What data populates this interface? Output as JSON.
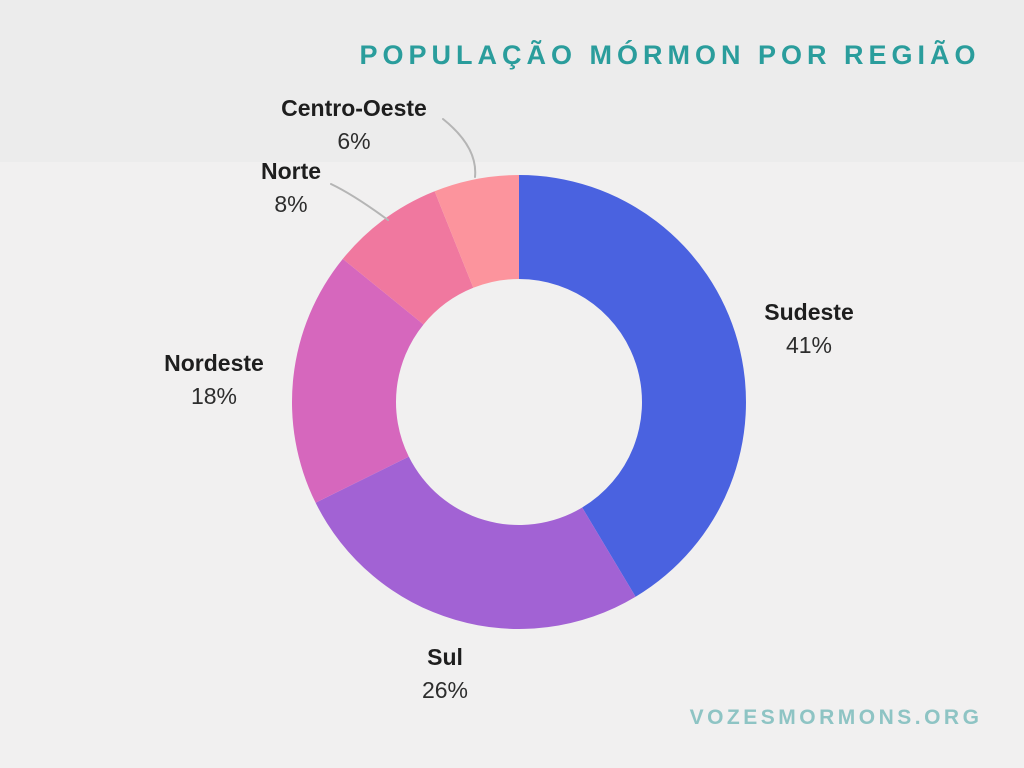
{
  "title": "POPULAÇÃO MÓRMON POR REGIÃO",
  "footer": "VOZESMORMONS.ORG",
  "colors": {
    "title_text": "#2a9d9c",
    "footer_text": "#8ec4c4",
    "background_top_band": "#ececec",
    "background": "#f1f0f0",
    "leader_line": "#b5b5b5",
    "label_text": "#1e1e1e"
  },
  "chart_data": {
    "type": "pie",
    "donut": true,
    "start_angle": "12 o'clock, clockwise",
    "title": "POPULAÇÃO MÓRMON POR REGIÃO",
    "legend_position": "labels around chart",
    "slices": [
      {
        "label": "Sudeste",
        "value": 41,
        "pct": "41%",
        "color": "#4a62e0"
      },
      {
        "label": "Sul",
        "value": 26,
        "pct": "26%",
        "color": "#a262d4"
      },
      {
        "label": "Nordeste",
        "value": 18,
        "pct": "18%",
        "color": "#d667bd"
      },
      {
        "label": "Norte",
        "value": 8,
        "pct": "8%",
        "color": "#f0789f"
      },
      {
        "label": "Centro-Oeste",
        "value": 6,
        "pct": "6%",
        "color": "#fc949d"
      }
    ]
  }
}
